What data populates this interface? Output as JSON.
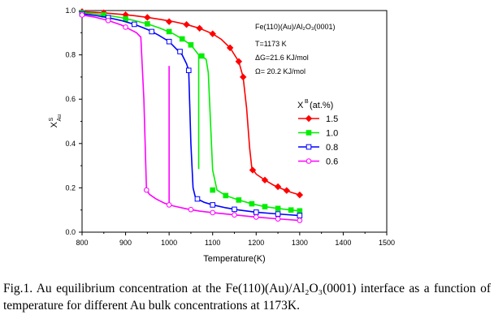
{
  "chart_data": {
    "type": "line",
    "xlabel": "Temperature(K)",
    "ylabel_main": "X",
    "ylabel_sup": "S",
    "ylabel_sub": "Au",
    "xlim": [
      800,
      1500
    ],
    "ylim": [
      0.0,
      1.0
    ],
    "xticks": [
      800,
      900,
      1000,
      1100,
      1200,
      1300,
      1400,
      1500
    ],
    "yticks": [
      0.0,
      0.2,
      0.4,
      0.6,
      0.8,
      1.0
    ],
    "xtick_labels": [
      "800",
      "900",
      "1000",
      "1100",
      "1200",
      "1300",
      "1400",
      "1500"
    ],
    "ytick_labels": [
      "0.0",
      "0.2",
      "0.4",
      "0.6",
      "0.8",
      "1.0"
    ],
    "grid": false,
    "annotations": [
      "Fe(110)(Au)/Al₂O₃(0001)",
      "T=1173 K",
      "ΔG=21.6 KJ/mol",
      "Ω= 20.2 KJ/mol"
    ],
    "legend_title_main": "X",
    "legend_title_sup": "B",
    "legend_title_rest": "(at.%)",
    "legend_position": "right",
    "series": [
      {
        "name": "1.5",
        "color": "#ff0000",
        "marker": "diamond-filled",
        "x": [
          800,
          830,
          860,
          890,
          920,
          950,
          980,
          1010,
          1040,
          1070,
          1100,
          1120,
          1140,
          1160,
          1170,
          1178,
          1185,
          1190,
          1200,
          1220,
          1240,
          1260,
          1280,
          1300
        ],
        "y": [
          0.995,
          0.992,
          0.988,
          0.983,
          0.977,
          0.969,
          0.96,
          0.95,
          0.937,
          0.92,
          0.895,
          0.87,
          0.832,
          0.77,
          0.7,
          0.56,
          0.38,
          0.29,
          0.262,
          0.235,
          0.212,
          0.195,
          0.18,
          0.168
        ],
        "marker_x": [
          800,
          850,
          900,
          950,
          1000,
          1040,
          1070,
          1100,
          1140,
          1160,
          1170,
          1192,
          1220,
          1250,
          1270,
          1300
        ],
        "marker_y": [
          0.995,
          0.99,
          0.981,
          0.969,
          0.95,
          0.937,
          0.92,
          0.895,
          0.832,
          0.77,
          0.7,
          0.28,
          0.235,
          0.205,
          0.188,
          0.168
        ]
      },
      {
        "name": "1.0",
        "color": "#00ee00",
        "marker": "square-filled",
        "x": [
          800,
          830,
          860,
          890,
          920,
          950,
          980,
          1010,
          1030,
          1050,
          1060,
          1068,
          1075,
          1085,
          1090,
          1095,
          1100,
          1110,
          1130,
          1160,
          1190,
          1220,
          1250,
          1280,
          1300
        ],
        "y": [
          0.99,
          0.985,
          0.978,
          0.968,
          0.955,
          0.94,
          0.92,
          0.895,
          0.872,
          0.845,
          0.82,
          0.8,
          0.795,
          0.78,
          0.72,
          0.5,
          0.28,
          0.19,
          0.165,
          0.145,
          0.128,
          0.115,
          0.107,
          0.1,
          0.096
        ],
        "marker_x": [
          800,
          850,
          900,
          950,
          1000,
          1030,
          1050,
          1075,
          1100,
          1130,
          1160,
          1190,
          1220,
          1250,
          1280,
          1300
        ],
        "marker_y": [
          0.99,
          0.98,
          0.962,
          0.94,
          0.905,
          0.872,
          0.845,
          0.795,
          0.19,
          0.165,
          0.145,
          0.128,
          0.115,
          0.107,
          0.1,
          0.096
        ],
        "drop_x": 1068,
        "drop_to": 0.285
      },
      {
        "name": "0.8",
        "color": "#0000ff",
        "marker": "square-open",
        "x": [
          800,
          830,
          860,
          890,
          920,
          950,
          975,
          1000,
          1010,
          1020,
          1030,
          1040,
          1045,
          1050,
          1055,
          1060,
          1065,
          1080,
          1100,
          1130,
          1160,
          1200,
          1250,
          1300
        ],
        "y": [
          0.985,
          0.978,
          0.968,
          0.955,
          0.938,
          0.915,
          0.89,
          0.86,
          0.84,
          0.82,
          0.8,
          0.76,
          0.73,
          0.4,
          0.2,
          0.16,
          0.15,
          0.135,
          0.123,
          0.11,
          0.1,
          0.09,
          0.082,
          0.075
        ],
        "marker_x": [
          800,
          860,
          920,
          960,
          1000,
          1025,
          1045,
          1065,
          1100,
          1150,
          1200,
          1250,
          1300
        ],
        "marker_y": [
          0.985,
          0.968,
          0.938,
          0.905,
          0.86,
          0.815,
          0.73,
          0.15,
          0.123,
          0.103,
          0.09,
          0.082,
          0.075
        ]
      },
      {
        "name": "0.6",
        "color": "#ff00ff",
        "marker": "circle-open",
        "x": [
          800,
          830,
          860,
          890,
          910,
          925,
          935,
          942,
          948,
          955,
          970,
          990,
          1010,
          1040,
          1070,
          1100,
          1150,
          1200,
          1250,
          1300
        ],
        "y": [
          0.98,
          0.97,
          0.955,
          0.935,
          0.915,
          0.9,
          0.88,
          0.6,
          0.19,
          0.17,
          0.15,
          0.13,
          0.118,
          0.105,
          0.095,
          0.088,
          0.078,
          0.068,
          0.06,
          0.053
        ],
        "marker_x": [
          800,
          860,
          900,
          948,
          1000,
          1050,
          1100,
          1150,
          1200,
          1250,
          1300
        ],
        "marker_y": [
          0.98,
          0.955,
          0.925,
          0.19,
          0.123,
          0.102,
          0.088,
          0.078,
          0.068,
          0.06,
          0.053
        ],
        "drop_x": 1000,
        "drop_from": 0.75,
        "drop_to": 0.125
      }
    ]
  },
  "caption": {
    "text": "Fig.1. Au equilibrium concentration at the Fe(110)(Au)/Al₂O₃(0001) interface as a function of temperature for different Au bulk concentrations at 1173K."
  }
}
